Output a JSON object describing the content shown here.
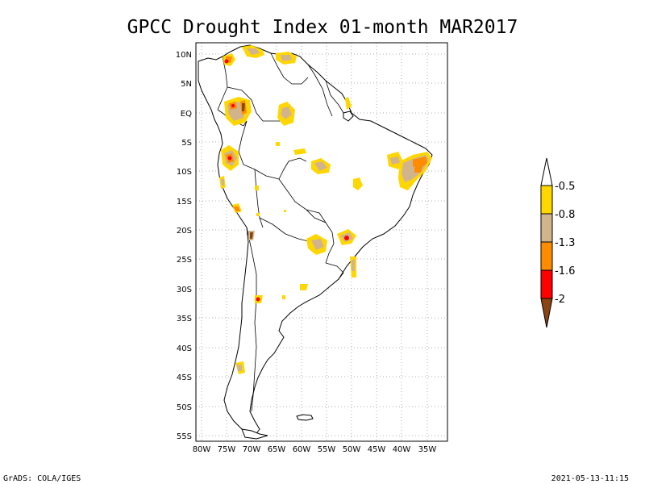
{
  "title": "GPCC Drought Index 01-month MAR2017",
  "map": {
    "lat_labels": [
      "10N",
      "5N",
      "EQ",
      "5S",
      "10S",
      "15S",
      "20S",
      "25S",
      "30S",
      "35S",
      "40S",
      "45S",
      "50S",
      "55S"
    ],
    "lon_labels": [
      "80W",
      "75W",
      "70W",
      "65W",
      "60W",
      "55W",
      "50W",
      "45W",
      "40W",
      "35W"
    ]
  },
  "colorbar": {
    "levels": [
      "-0.5",
      "-0.8",
      "-1.3",
      "-1.6",
      "-2"
    ],
    "colors": {
      "cat1": "#ffd700",
      "cat2": "#d2b48c",
      "cat3": "#ff8c00",
      "cat4": "#ff0000",
      "cat5": "#8b4513"
    }
  },
  "footer": {
    "left": "GrADS: COLA/IGES",
    "right": "2021-05-13-11:15"
  }
}
